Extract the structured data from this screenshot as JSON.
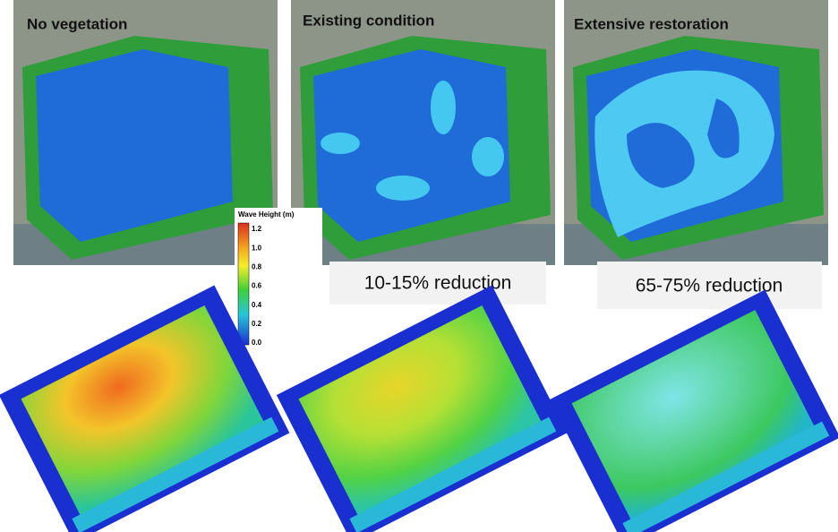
{
  "panels": [
    {
      "title": "No vegetation"
    },
    {
      "title": "Existing condition",
      "reduction": "10-15% reduction"
    },
    {
      "title": "Extensive restoration",
      "reduction": "65-75% reduction"
    }
  ],
  "colorbar": {
    "title": "Wave Height (m)",
    "ticks": [
      "1.2",
      "1.0",
      "0.8",
      "0.6",
      "0.4",
      "0.2",
      "0.0"
    ]
  }
}
